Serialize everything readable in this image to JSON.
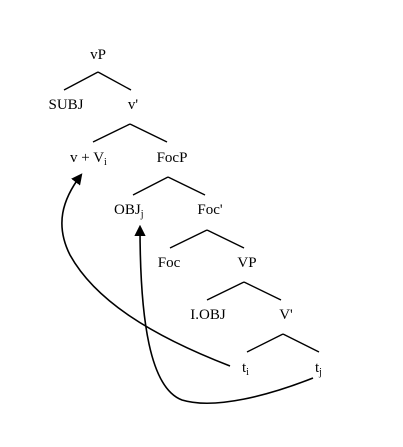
{
  "tree": {
    "nodes": {
      "vP": "vP",
      "subj": "SUBJ",
      "v_bar": "v'",
      "v_head": "v + V",
      "v_head_index": "i",
      "focp": "FocP",
      "obj": "OBJ",
      "obj_index": "j",
      "foc_bar": "Foc'",
      "foc": "Foc",
      "vp": "VP",
      "iobj": "I.OBJ",
      "v_prime": "V'",
      "trace_i": "t",
      "trace_i_index": "i",
      "trace_j": "t",
      "trace_j_index": "j"
    }
  }
}
